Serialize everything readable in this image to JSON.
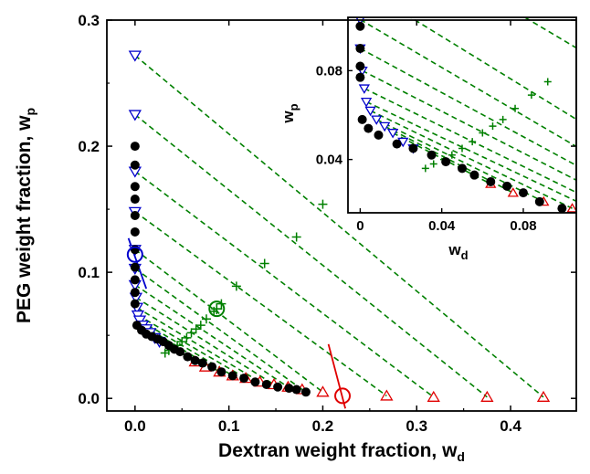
{
  "chart_data": [
    {
      "type": "scatter",
      "name": "main",
      "xlabel": "Dextran weight fraction, w",
      "xlabel_sub": "d",
      "ylabel": "PEG weight fraction, w",
      "ylabel_sub": "p",
      "xlim": [
        -0.03,
        0.47
      ],
      "ylim": [
        -0.01,
        0.3
      ],
      "xticks": [
        0.0,
        0.1,
        0.2,
        0.3,
        0.4
      ],
      "xtick_labels": [
        "0.0",
        "0.1",
        "0.2",
        "0.3",
        "0.4"
      ],
      "yticks": [
        0.0,
        0.1,
        0.2,
        0.3
      ],
      "ytick_labels": [
        "0.0",
        "0.1",
        "0.2",
        "0.3"
      ],
      "grid": false,
      "colors": {
        "binodal": "#000000",
        "peg_rich": "#0000cc",
        "dextran_rich": "#e00000",
        "tie": "#008000"
      },
      "series": [
        {
          "kind": "filled-circle",
          "color": "#000000",
          "points": [
            [
              0.0,
              0.2
            ],
            [
              0.0,
              0.185
            ],
            [
              0.0,
              0.168
            ],
            [
              0.0,
              0.158
            ],
            [
              0.0,
              0.145
            ],
            [
              0.0,
              0.132
            ],
            [
              0.0,
              0.118
            ],
            [
              0.0,
              0.104
            ],
            [
              0.0,
              0.094
            ],
            [
              0.0,
              0.084
            ],
            [
              0.0,
              0.075
            ],
            [
              0.002,
              0.058
            ],
            [
              0.007,
              0.054
            ],
            [
              0.012,
              0.051
            ],
            [
              0.018,
              0.049
            ],
            [
              0.024,
              0.047
            ],
            [
              0.03,
              0.045
            ],
            [
              0.036,
              0.042
            ],
            [
              0.042,
              0.039
            ],
            [
              0.048,
              0.037
            ],
            [
              0.056,
              0.033
            ],
            [
              0.064,
              0.03
            ],
            [
              0.072,
              0.028
            ],
            [
              0.082,
              0.025
            ],
            [
              0.092,
              0.021
            ],
            [
              0.104,
              0.018
            ],
            [
              0.116,
              0.016
            ],
            [
              0.128,
              0.013
            ],
            [
              0.14,
              0.011
            ],
            [
              0.152,
              0.009
            ],
            [
              0.164,
              0.008
            ],
            [
              0.172,
              0.007
            ],
            [
              0.182,
              0.005
            ]
          ]
        },
        {
          "kind": "open-triangle-down",
          "color": "#0000cc",
          "points": [
            [
              0.0,
              0.272
            ],
            [
              0.0,
              0.225
            ],
            [
              0.0,
              0.18
            ],
            [
              0.0,
              0.148
            ],
            [
              0.0,
              0.118
            ],
            [
              0.0,
              0.103
            ],
            [
              0.0,
              0.09
            ],
            [
              0.001,
              0.08
            ],
            [
              0.002,
              0.072
            ],
            [
              0.003,
              0.066
            ],
            [
              0.005,
              0.062
            ],
            [
              0.008,
              0.058
            ],
            [
              0.012,
              0.055
            ],
            [
              0.016,
              0.052
            ],
            [
              0.021,
              0.048
            ],
            [
              0.026,
              0.045
            ]
          ]
        },
        {
          "kind": "open-triangle-up",
          "color": "#e00000",
          "points": [
            [
              0.064,
              0.029
            ],
            [
              0.075,
              0.025
            ],
            [
              0.09,
              0.021
            ],
            [
              0.104,
              0.018
            ],
            [
              0.118,
              0.016
            ],
            [
              0.133,
              0.013
            ],
            [
              0.148,
              0.011
            ],
            [
              0.163,
              0.009
            ],
            [
              0.178,
              0.007
            ],
            [
              0.2,
              0.005
            ],
            [
              0.268,
              0.002
            ],
            [
              0.318,
              0.001
            ],
            [
              0.375,
              0.001
            ],
            [
              0.435,
              0.001
            ]
          ]
        },
        {
          "kind": "plus",
          "color": "#008000",
          "points": [
            [
              0.032,
              0.036
            ],
            [
              0.036,
              0.038
            ],
            [
              0.041,
              0.04
            ],
            [
              0.045,
              0.042
            ],
            [
              0.05,
              0.045
            ],
            [
              0.055,
              0.048
            ],
            [
              0.06,
              0.052
            ],
            [
              0.065,
              0.055
            ],
            [
              0.07,
              0.058
            ],
            [
              0.076,
              0.063
            ],
            [
              0.084,
              0.069
            ],
            [
              0.092,
              0.075
            ],
            [
              0.108,
              0.089
            ],
            [
              0.138,
              0.107
            ],
            [
              0.172,
              0.128
            ],
            [
              0.2,
              0.154
            ]
          ]
        }
      ],
      "tie_lines": [
        [
          [
            0.0,
            0.272
          ],
          [
            0.435,
            0.001
          ]
        ],
        [
          [
            0.0,
            0.225
          ],
          [
            0.375,
            0.001
          ]
        ],
        [
          [
            0.0,
            0.18
          ],
          [
            0.318,
            0.001
          ]
        ],
        [
          [
            0.0,
            0.148
          ],
          [
            0.268,
            0.002
          ]
        ],
        [
          [
            0.0,
            0.118
          ],
          [
            0.2,
            0.005
          ]
        ],
        [
          [
            0.0,
            0.103
          ],
          [
            0.178,
            0.007
          ]
        ],
        [
          [
            0.0,
            0.09
          ],
          [
            0.163,
            0.009
          ]
        ],
        [
          [
            0.001,
            0.08
          ],
          [
            0.148,
            0.011
          ]
        ],
        [
          [
            0.002,
            0.072
          ],
          [
            0.133,
            0.013
          ]
        ],
        [
          [
            0.003,
            0.066
          ],
          [
            0.118,
            0.016
          ]
        ],
        [
          [
            0.005,
            0.062
          ],
          [
            0.104,
            0.018
          ]
        ],
        [
          [
            0.008,
            0.058
          ],
          [
            0.09,
            0.021
          ]
        ],
        [
          [
            0.012,
            0.055
          ],
          [
            0.075,
            0.025
          ]
        ],
        [
          [
            0.016,
            0.052
          ],
          [
            0.064,
            0.029
          ]
        ]
      ],
      "highlight_markers": [
        {
          "kind": "open-circle",
          "color": "#0000cc",
          "x": 0.0,
          "y": 0.114
        },
        {
          "kind": "open-circle-plus",
          "color": "#008000",
          "x": 0.087,
          "y": 0.071
        },
        {
          "kind": "open-circle",
          "color": "#e00000",
          "x": 0.221,
          "y": 0.002
        }
      ],
      "slope_lines": [
        {
          "color": "#0000cc",
          "from": [
            -0.007,
            0.127
          ],
          "to": [
            0.012,
            0.087
          ]
        },
        {
          "color": "#e00000",
          "from": [
            0.206,
            0.043
          ],
          "to": [
            0.224,
            -0.008
          ]
        }
      ]
    },
    {
      "type": "scatter",
      "name": "inset",
      "xlabel": "w",
      "xlabel_sub": "d",
      "ylabel": "w",
      "ylabel_sub": "p",
      "xlim": [
        -0.006,
        0.106
      ],
      "ylim": [
        0.016,
        0.104
      ],
      "xticks": [
        0.0,
        0.04,
        0.08
      ],
      "xtick_labels": [
        "0",
        "0.04",
        "0.08"
      ],
      "yticks": [
        0.04,
        0.08
      ],
      "ytick_labels": [
        "0.04",
        "0.08"
      ],
      "grid": false,
      "tie_lines_from": "main",
      "binodal_points": [
        [
          0.0,
          0.1
        ],
        [
          0.0,
          0.09
        ],
        [
          0.0,
          0.082
        ],
        [
          0.0,
          0.077
        ],
        [
          0.001,
          0.058
        ],
        [
          0.004,
          0.054
        ],
        [
          0.009,
          0.051
        ],
        [
          0.018,
          0.047
        ],
        [
          0.026,
          0.045
        ],
        [
          0.035,
          0.042
        ],
        [
          0.042,
          0.039
        ],
        [
          0.05,
          0.036
        ],
        [
          0.056,
          0.033
        ],
        [
          0.064,
          0.03
        ],
        [
          0.072,
          0.028
        ],
        [
          0.08,
          0.025
        ],
        [
          0.088,
          0.021
        ],
        [
          0.099,
          0.018
        ]
      ]
    }
  ]
}
